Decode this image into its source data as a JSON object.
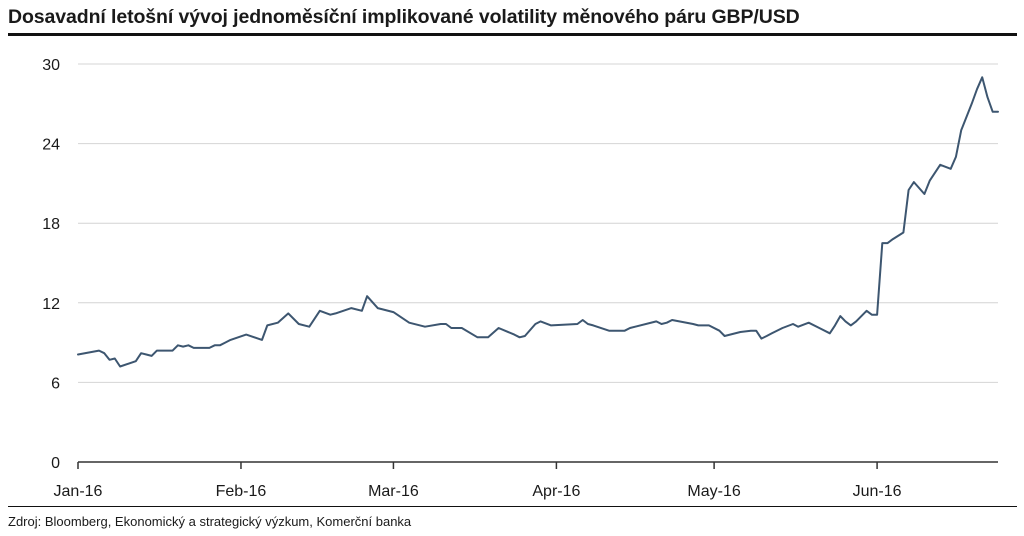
{
  "title": "Dosavadní letošní vývoj jednoměsíční implikované volatility měnového páru GBP/USD",
  "source": "Zdroj: Bloomberg, Ekonomický a strategický výzkum, Komerční banka",
  "colors": {
    "line": "#3d5670",
    "grid": "#d4d4d4",
    "axis": "#333333",
    "text": "#1a1a1a"
  },
  "chart_data": {
    "type": "line",
    "title": "Dosavadní letošní vývoj jednoměsíční implikované volatility měnového páru GBP/USD",
    "xlabel": "",
    "ylabel": "",
    "ylim": [
      0,
      30
    ],
    "yticks": [
      0,
      6,
      12,
      18,
      24,
      30
    ],
    "xlim": [
      "2016-01-01",
      "2016-06-24"
    ],
    "xticks": [
      {
        "date": "2016-01-01",
        "label": "Jan-16"
      },
      {
        "date": "2016-02-01",
        "label": "Feb-16"
      },
      {
        "date": "2016-03-01",
        "label": "Mar-16"
      },
      {
        "date": "2016-04-01",
        "label": "Apr-16"
      },
      {
        "date": "2016-05-01",
        "label": "May-16"
      },
      {
        "date": "2016-06-01",
        "label": "Jun-16"
      }
    ],
    "grid": true,
    "legend": "none",
    "series": [
      {
        "x": [
          "2016-01-01",
          "2016-01-05",
          "2016-01-06",
          "2016-01-07",
          "2016-01-08",
          "2016-01-09",
          "2016-01-12",
          "2016-01-13",
          "2016-01-14",
          "2016-01-15",
          "2016-01-16",
          "2016-01-19",
          "2016-01-20",
          "2016-01-21",
          "2016-01-22",
          "2016-01-23",
          "2016-01-26",
          "2016-01-27",
          "2016-01-28",
          "2016-01-29",
          "2016-01-30",
          "2016-02-02",
          "2016-02-05",
          "2016-02-06",
          "2016-02-08",
          "2016-02-10",
          "2016-02-12",
          "2016-02-14",
          "2016-02-16",
          "2016-02-18",
          "2016-02-19",
          "2016-02-22",
          "2016-02-24",
          "2016-02-25",
          "2016-02-27",
          "2016-03-01",
          "2016-03-04",
          "2016-03-07",
          "2016-03-10",
          "2016-03-11",
          "2016-03-12",
          "2016-03-14",
          "2016-03-17",
          "2016-03-18",
          "2016-03-19",
          "2016-03-21",
          "2016-03-24",
          "2016-03-25",
          "2016-03-26",
          "2016-03-28",
          "2016-03-29",
          "2016-03-31",
          "2016-04-05",
          "2016-04-06",
          "2016-04-07",
          "2016-04-08",
          "2016-04-11",
          "2016-04-14",
          "2016-04-15",
          "2016-04-20",
          "2016-04-21",
          "2016-04-22",
          "2016-04-23",
          "2016-04-27",
          "2016-04-28",
          "2016-04-29",
          "2016-04-30",
          "2016-05-02",
          "2016-05-03",
          "2016-05-06",
          "2016-05-08",
          "2016-05-09",
          "2016-05-10",
          "2016-05-11",
          "2016-05-12",
          "2016-05-14",
          "2016-05-16",
          "2016-05-17",
          "2016-05-19",
          "2016-05-21",
          "2016-05-23",
          "2016-05-24",
          "2016-05-25",
          "2016-05-26",
          "2016-05-27",
          "2016-05-28",
          "2016-05-30",
          "2016-05-31",
          "2016-06-01",
          "2016-06-02",
          "2016-06-03",
          "2016-06-04",
          "2016-06-06",
          "2016-06-07",
          "2016-06-08",
          "2016-06-10",
          "2016-06-11",
          "2016-06-13",
          "2016-06-15",
          "2016-06-16",
          "2016-06-17",
          "2016-06-19",
          "2016-06-20",
          "2016-06-21",
          "2016-06-22",
          "2016-06-23",
          "2016-06-24",
          "2016-06-24"
        ],
        "values": [
          8.1,
          8.4,
          8.2,
          7.7,
          7.8,
          7.2,
          7.6,
          8.2,
          8.1,
          8.0,
          8.4,
          8.4,
          8.8,
          8.7,
          8.8,
          8.6,
          8.6,
          8.8,
          8.8,
          9.0,
          9.2,
          9.6,
          9.2,
          10.3,
          10.5,
          11.2,
          10.4,
          10.2,
          11.4,
          11.1,
          11.2,
          11.6,
          11.4,
          12.5,
          11.6,
          11.3,
          10.5,
          10.2,
          10.4,
          10.4,
          10.1,
          10.1,
          9.4,
          9.4,
          9.4,
          10.1,
          9.6,
          9.4,
          9.5,
          10.4,
          10.6,
          10.3,
          10.4,
          10.7,
          10.4,
          10.3,
          9.9,
          9.9,
          10.1,
          10.6,
          10.4,
          10.5,
          10.7,
          10.4,
          10.3,
          10.3,
          10.3,
          9.9,
          9.5,
          9.8,
          9.9,
          9.9,
          9.3,
          9.5,
          9.7,
          10.1,
          10.4,
          10.2,
          10.5,
          10.1,
          9.7,
          10.3,
          11.0,
          10.6,
          10.3,
          10.6,
          11.4,
          11.1,
          11.1,
          16.5,
          16.5,
          16.8,
          17.3,
          20.5,
          21.1,
          20.2,
          21.2,
          22.4,
          22.1,
          23.0,
          25.0,
          27.0,
          28.1,
          29.0,
          27.5,
          26.4,
          26.4,
          26.4
        ]
      }
    ]
  }
}
